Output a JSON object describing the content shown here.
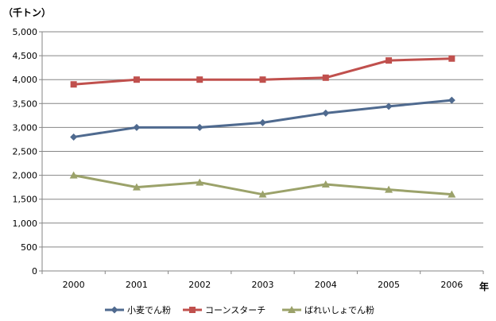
{
  "chart_data": {
    "type": "line",
    "y_unit_label": "（千トン）",
    "x_unit_label": "年",
    "ylim": [
      0,
      5000
    ],
    "y_ticks": [
      0,
      500,
      1000,
      1500,
      2000,
      2500,
      3000,
      3500,
      4000,
      4500,
      5000
    ],
    "y_tick_labels": [
      "0",
      "500",
      "1,000",
      "1,500",
      "2,000",
      "2,500",
      "3,000",
      "3,500",
      "4,000",
      "4,500",
      "5,000"
    ],
    "categories": [
      "2000",
      "2001",
      "2002",
      "2003",
      "2004",
      "2005",
      "2006"
    ],
    "grid": true,
    "legend_position": "bottom",
    "series": [
      {
        "name": "小麦でん粉",
        "color": "#4F6A8F",
        "marker": "diamond",
        "values": [
          2800,
          3000,
          3000,
          3100,
          3300,
          3440,
          3570
        ]
      },
      {
        "name": "コーンスターチ",
        "color": "#C0504D",
        "marker": "square",
        "values": [
          3900,
          4000,
          4000,
          4000,
          4040,
          4400,
          4440
        ]
      },
      {
        "name": "ばれいしょでん粉",
        "color": "#9BA26A",
        "marker": "triangle",
        "values": [
          2000,
          1750,
          1850,
          1600,
          1810,
          1700,
          1600
        ]
      }
    ]
  }
}
